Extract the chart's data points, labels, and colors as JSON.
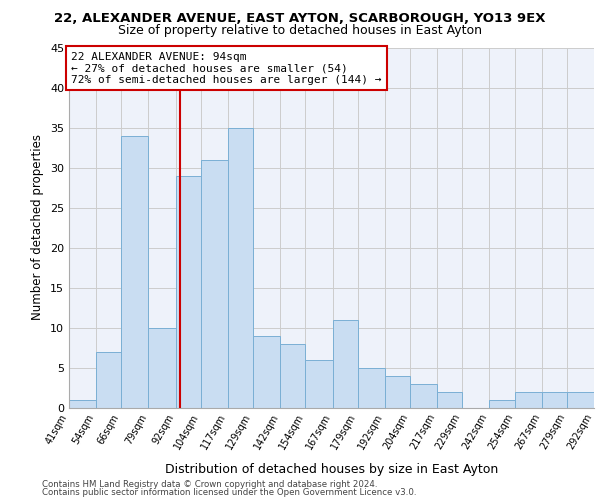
{
  "title1": "22, ALEXANDER AVENUE, EAST AYTON, SCARBOROUGH, YO13 9EX",
  "title2": "Size of property relative to detached houses in East Ayton",
  "xlabel": "Distribution of detached houses by size in East Ayton",
  "ylabel": "Number of detached properties",
  "bar_edges": [
    41,
    54,
    66,
    79,
    92,
    104,
    117,
    129,
    142,
    154,
    167,
    179,
    192,
    204,
    217,
    229,
    242,
    254,
    267,
    279,
    292
  ],
  "bar_heights": [
    1,
    7,
    34,
    10,
    29,
    31,
    35,
    9,
    8,
    6,
    11,
    5,
    4,
    3,
    2,
    0,
    1,
    2,
    2,
    2
  ],
  "bar_color": "#c9ddf2",
  "bar_edge_color": "#7aafd4",
  "property_size": 94,
  "vline_color": "#cc0000",
  "annotation_text": "22 ALEXANDER AVENUE: 94sqm\n← 27% of detached houses are smaller (54)\n72% of semi-detached houses are larger (144) →",
  "annotation_box_color": "#ffffff",
  "annotation_box_edge_color": "#cc0000",
  "annotation_fontsize": 8,
  "grid_color": "#cccccc",
  "bg_color": "#eef2fa",
  "footer1": "Contains HM Land Registry data © Crown copyright and database right 2024.",
  "footer2": "Contains public sector information licensed under the Open Government Licence v3.0.",
  "ylim": [
    0,
    45
  ],
  "yticks": [
    0,
    5,
    10,
    15,
    20,
    25,
    30,
    35,
    40,
    45
  ],
  "title1_fontsize": 9.5,
  "title2_fontsize": 9,
  "ylabel_fontsize": 8.5,
  "xlabel_fontsize": 9
}
